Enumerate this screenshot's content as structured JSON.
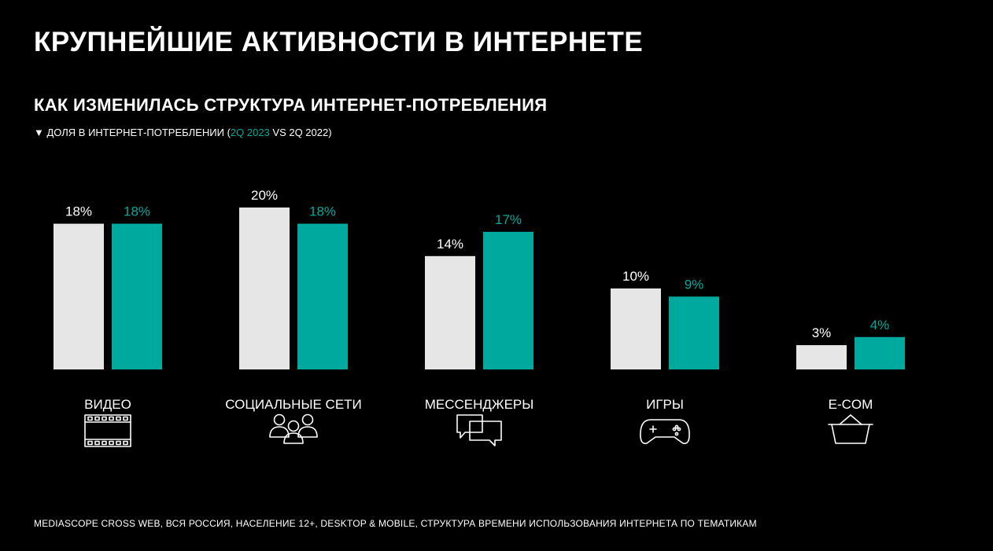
{
  "header": {
    "title": "КРУПНЕЙШИЕ АКТИВНОСТИ В ИНТЕРНЕТЕ",
    "subtitle": "КАК ИЗМЕНИЛАСЬ СТРУКТУРА ИНТЕРНЕТ-ПОТРЕБЛЕНИЯ",
    "legend_prefix": "▼ ДОЛЯ В ИНТЕРНЕТ-ПОТРЕБЛЕНИИ (",
    "legend_highlight": "2Q 2023",
    "legend_suffix": " VS 2Q 2022)"
  },
  "footer": {
    "source": "MEDIASCOPE CROSS WEB, ВСЯ РОССИЯ, НАСЕЛЕНИЕ 12+, DESKTOP & MOBILE, СТРУКТУРА ВРЕМЕНИ ИСПОЛЬЗОВАНИЯ ИНТЕРНЕТА ПО ТЕМАТИКАМ"
  },
  "colors": {
    "background": "#000000",
    "series_2022": "#e6e6e6",
    "series_2023": "#00a99d",
    "text": "#ffffff"
  },
  "chart_data": {
    "type": "bar",
    "categories": [
      "ВИДЕО",
      "СОЦИАЛЬНЫЕ СЕТИ",
      "МЕССЕНДЖЕРЫ",
      "ИГРЫ",
      "E-COM"
    ],
    "category_icons": [
      "film-icon",
      "people-icon",
      "chat-icon",
      "gamepad-icon",
      "basket-icon"
    ],
    "series": [
      {
        "name": "2Q 2022",
        "values": [
          18,
          20,
          14,
          10,
          3
        ],
        "labels": [
          "18%",
          "20%",
          "14%",
          "10%",
          "3%"
        ]
      },
      {
        "name": "2Q 2023",
        "values": [
          18,
          18,
          17,
          9,
          4
        ],
        "labels": [
          "18%",
          "18%",
          "17%",
          "9%",
          "4%"
        ]
      }
    ],
    "ylim": [
      0,
      20
    ],
    "grid": false,
    "legend": "in-subtitle"
  }
}
